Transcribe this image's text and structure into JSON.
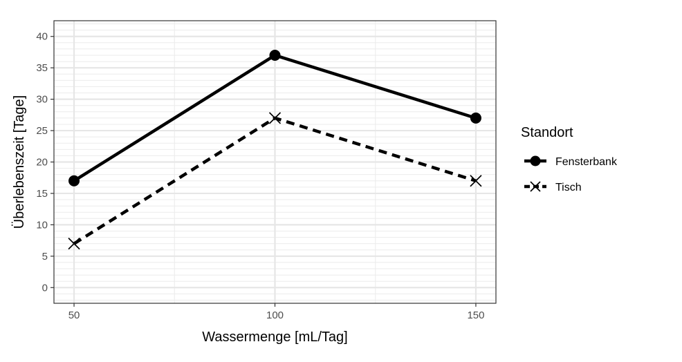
{
  "chart_data": {
    "type": "line",
    "x": [
      50,
      100,
      150
    ],
    "xticks": [
      50,
      100,
      150
    ],
    "xlim": [
      45,
      155
    ],
    "yticks": [
      0,
      5,
      10,
      15,
      20,
      25,
      30,
      35,
      40
    ],
    "ylim": [
      -2.5,
      42.5
    ],
    "xlabel": "Wassermenge [mL/Tag]",
    "ylabel": "Überlebenszeit [Tage]",
    "grid": true,
    "legend": {
      "title": "Standort",
      "position": "right"
    },
    "series": [
      {
        "name": "Fensterbank",
        "values": [
          17,
          37,
          27
        ],
        "linestyle": "solid",
        "marker": "circle",
        "color": "#000000"
      },
      {
        "name": "Tisch",
        "values": [
          7,
          27,
          17
        ],
        "linestyle": "dashed",
        "marker": "x",
        "color": "#000000"
      }
    ]
  }
}
